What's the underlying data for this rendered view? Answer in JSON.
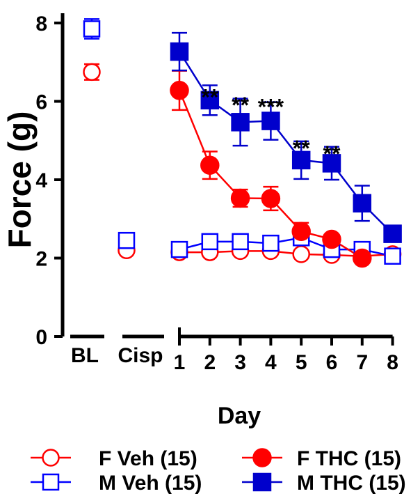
{
  "chart_data": {
    "type": "line",
    "xlabel": "Day",
    "ylabel": "Force (g)",
    "ylim": [
      0,
      8
    ],
    "yticks": [
      "0",
      "2",
      "4",
      "6",
      "8"
    ],
    "baseline_categories": [
      "BL",
      "Cisp"
    ],
    "days": [
      "1",
      "2",
      "3",
      "4",
      "5",
      "6",
      "7",
      "8"
    ],
    "series": [
      {
        "name": "F Veh (15)",
        "legend_label": "F Veh (15)",
        "marker": "circle",
        "filled": false,
        "color": "#ff0000",
        "baseline": [
          6.75,
          2.2
        ],
        "values": [
          2.15,
          2.15,
          2.18,
          2.18,
          2.1,
          2.08,
          2.05,
          2.1
        ],
        "bl_err": [
          0.2,
          0.06
        ],
        "errors": [
          0.06,
          0.06,
          0.06,
          0.06,
          0.06,
          0.06,
          0.06,
          0.06
        ]
      },
      {
        "name": "M Veh (15)",
        "legend_label": "M Veh (15)",
        "marker": "square",
        "filled": false,
        "color": "#0000ff",
        "baseline": [
          7.85,
          2.45
        ],
        "values": [
          2.22,
          2.42,
          2.42,
          2.38,
          2.52,
          2.22,
          2.22,
          2.05
        ],
        "bl_err": [
          0.25,
          0.06
        ],
        "errors": [
          0.06,
          0.06,
          0.06,
          0.06,
          0.06,
          0.06,
          0.06,
          0.06
        ]
      },
      {
        "name": "F THC (15)",
        "legend_label": "F THC (15)",
        "marker": "circle",
        "filled": true,
        "color": "#ff0000",
        "values": [
          6.28,
          4.37,
          3.53,
          3.52,
          2.68,
          2.48,
          2.0,
          null
        ],
        "errors": [
          0.5,
          0.35,
          0.22,
          0.3,
          0.22,
          0.0,
          0.12,
          0.0
        ]
      },
      {
        "name": "M THC (15)",
        "legend_label": "M THC (15)",
        "marker": "square",
        "filled": true,
        "color": "#0000cc",
        "values": [
          7.27,
          6.03,
          5.47,
          5.5,
          4.5,
          4.42,
          3.4,
          2.62
        ],
        "errors": [
          0.48,
          0.38,
          0.6,
          0.48,
          0.48,
          0.42,
          0.45,
          0.0
        ]
      }
    ],
    "annotations": [
      {
        "day": "2",
        "text": "**",
        "y": 6.3
      },
      {
        "day": "3",
        "text": "**",
        "y": 6.1
      },
      {
        "day": "4",
        "text": "***",
        "y": 6.05
      },
      {
        "day": "5",
        "text": "**",
        "y": 5.0
      },
      {
        "day": "6",
        "text": "**",
        "y": 4.85
      }
    ]
  }
}
